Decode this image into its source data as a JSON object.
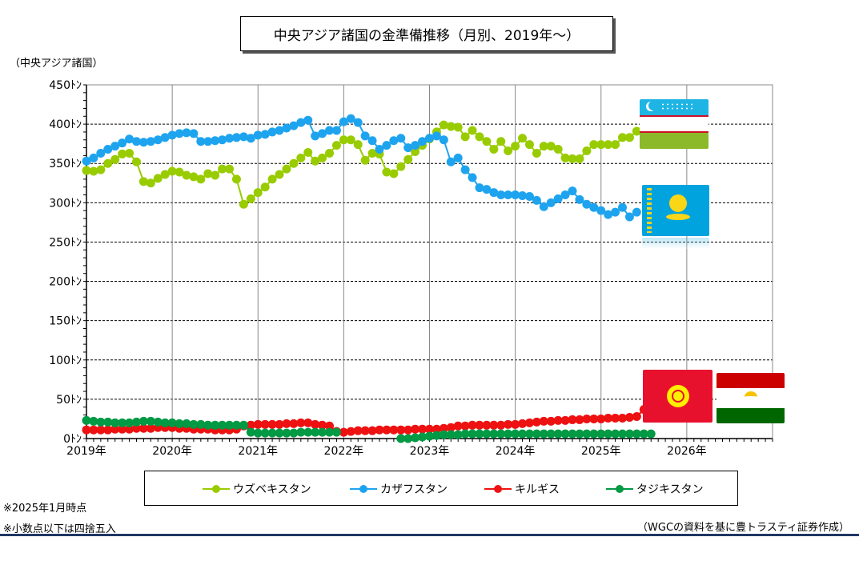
{
  "title": "中央アジア諸国の金準備推移（月別、2019年～）",
  "notes": [
    "※2025年1月時点",
    "※小数点以下は四捨五入"
  ],
  "source": "（WGCの資料を基に豊トラスティ証券作成）",
  "flags": [
    "uzbekistan-flag",
    "kazakhstan-flag",
    "kyrgyzstan-flag",
    "tajikistan-flag"
  ],
  "chart_data": {
    "type": "line",
    "title": "中央アジア諸国の金準備推移（月別、2019年～）",
    "ylabel": "（中央アジア諸国）",
    "y_ticks": [
      "0ﾄﾝ",
      "50ﾄﾝ",
      "100ﾄﾝ",
      "150ﾄﾝ",
      "200ﾄﾝ",
      "250ﾄﾝ",
      "300ﾄﾝ",
      "350ﾄﾝ",
      "400ﾄﾝ",
      "450ﾄﾝ"
    ],
    "x_ticks": [
      "2019年",
      "2020年",
      "2021年",
      "2022年",
      "2023年",
      "2024年",
      "2025年",
      "2026年"
    ],
    "ylim": [
      0,
      450
    ],
    "xlim": [
      2019,
      2027
    ],
    "grid": true,
    "legend_position": "bottom",
    "x_start": 2019.0,
    "x_step": 0.08333,
    "series": [
      {
        "name": "ウズベキスタン",
        "color": "#99cc00",
        "values": [
          341,
          340,
          342,
          350,
          355,
          362,
          363,
          352,
          327,
          325,
          331,
          336,
          340,
          339,
          335,
          333,
          330,
          337,
          335,
          343,
          343,
          330,
          298,
          305,
          313,
          320,
          330,
          336,
          343,
          350,
          357,
          364,
          353,
          357,
          363,
          373,
          380,
          380,
          374,
          354,
          363,
          362,
          339,
          337,
          346,
          355,
          365,
          373,
          381,
          390,
          399,
          397,
          396,
          384,
          392,
          384,
          378,
          368,
          378,
          366,
          372,
          382,
          374,
          363,
          372,
          372,
          368,
          357,
          356,
          356,
          366,
          374,
          374,
          374,
          374,
          383,
          383,
          391
        ]
      },
      {
        "name": "カザフスタン",
        "color": "#1ea4ef",
        "values": [
          353,
          357,
          363,
          368,
          372,
          376,
          381,
          378,
          377,
          378,
          380,
          383,
          386,
          388,
          389,
          388,
          378,
          378,
          379,
          380,
          382,
          383,
          384,
          382,
          386,
          387,
          390,
          392,
          395,
          398,
          402,
          405,
          385,
          388,
          392,
          392,
          403,
          407,
          402,
          385,
          379,
          368,
          373,
          379,
          382,
          370,
          373,
          378,
          382,
          385,
          380,
          352,
          357,
          342,
          332,
          319,
          317,
          313,
          310,
          310,
          310,
          309,
          308,
          303,
          295,
          300,
          305,
          310,
          315,
          304,
          298,
          294,
          290,
          285,
          288,
          294,
          282,
          288
        ]
      },
      {
        "name": "キルギス",
        "color": "#ee1111",
        "values": [
          11,
          11,
          11,
          11,
          12,
          12,
          12,
          13,
          13,
          13,
          14,
          14,
          14,
          13,
          13,
          12,
          12,
          12,
          11,
          11,
          11,
          12,
          16,
          17,
          18,
          18,
          18,
          18,
          19,
          19,
          20,
          20,
          18,
          17,
          16,
          9,
          8,
          9,
          10,
          10,
          10,
          11,
          11,
          11,
          11,
          11,
          12,
          12,
          12,
          12,
          13,
          14,
          16,
          16,
          17,
          17,
          17,
          17,
          17,
          18,
          18,
          19,
          20,
          21,
          22,
          22,
          23,
          23,
          24,
          24,
          25,
          25,
          25,
          26,
          26,
          26,
          27,
          28,
          37,
          37
        ]
      },
      {
        "name": "タジキスタン",
        "color": "#009944",
        "values": [
          23,
          22,
          21,
          21,
          20,
          20,
          20,
          21,
          22,
          22,
          21,
          20,
          20,
          19,
          19,
          18,
          18,
          17,
          17,
          17,
          17,
          17,
          17,
          8,
          7,
          7,
          7,
          7,
          7,
          7,
          8,
          8,
          8,
          8,
          8,
          8,
          null,
          null,
          null,
          null,
          null,
          null,
          null,
          null,
          0,
          0,
          1,
          2,
          3,
          4,
          5,
          5,
          5,
          6,
          6,
          6,
          6,
          6,
          6,
          6,
          6,
          6,
          6,
          6,
          6,
          6,
          6,
          6,
          6,
          6,
          6,
          6,
          6,
          6,
          6,
          6,
          6,
          6,
          6,
          6
        ]
      }
    ]
  }
}
